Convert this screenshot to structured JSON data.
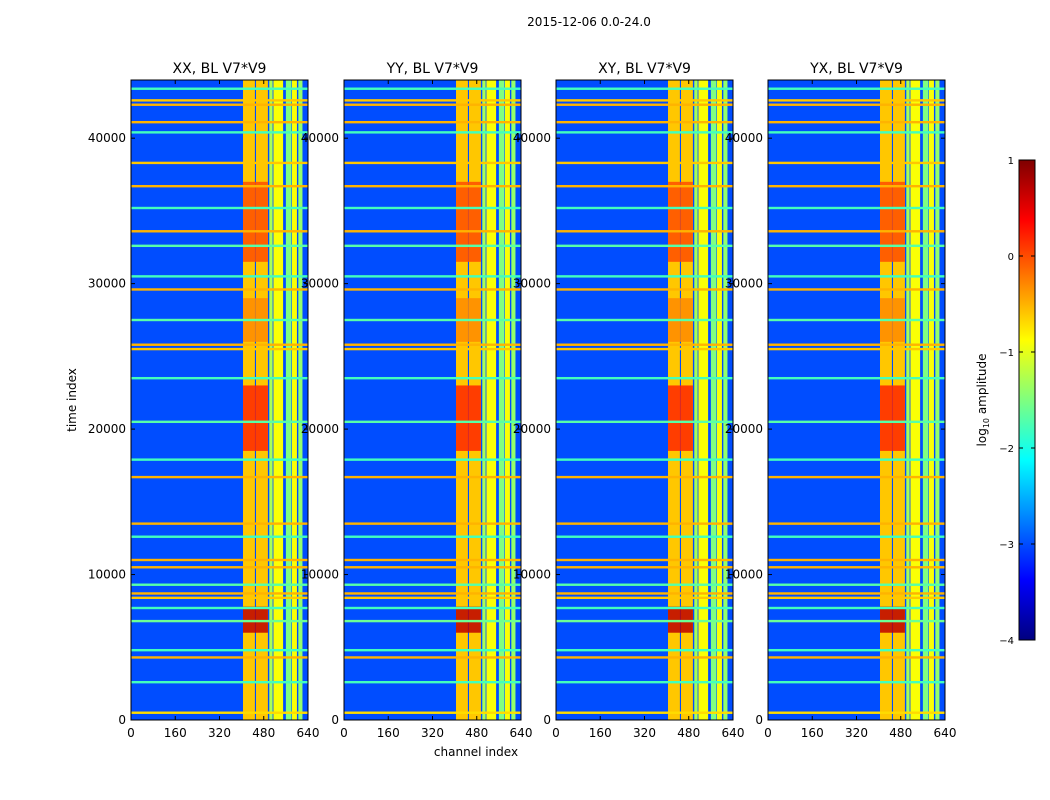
{
  "figure": {
    "suptitle": "2015-12-06 0.0-24.0",
    "xlabel": "channel index",
    "ylabel": "time index"
  },
  "colorbar": {
    "label_prefix": "log",
    "label_sub": "10",
    "label_suffix": " amplitude",
    "range": [
      -4,
      1
    ],
    "ticks": [
      1,
      0,
      -1,
      -2,
      -3,
      -4
    ],
    "tick_labels": [
      "1",
      "0",
      "−1",
      "−2",
      "−3",
      "−4"
    ],
    "colormap": "jet",
    "stops": [
      "#00007f",
      "#0000ff",
      "#007fff",
      "#00ffff",
      "#7fff7f",
      "#ffff00",
      "#ff7f00",
      "#ff0000",
      "#7f0000"
    ]
  },
  "chart_data": {
    "type": "heatmap",
    "xlim": [
      0,
      640
    ],
    "ylim": [
      0,
      44000
    ],
    "xticks": [
      0,
      160,
      320,
      480,
      640
    ],
    "yticks": [
      0,
      10000,
      20000,
      30000,
      40000
    ],
    "ytick_labels": [
      "0",
      "10000",
      "20000",
      "30000",
      "40000"
    ],
    "panels": [
      {
        "title": "XX, BL V7*V9"
      },
      {
        "title": "YY, BL V7*V9"
      },
      {
        "title": "XY, BL V7*V9"
      },
      {
        "title": "YX, BL V7*V9"
      }
    ],
    "background_level": -3,
    "channel_bands": [
      {
        "x": [
          405,
          448
        ],
        "level": -0.6
      },
      {
        "x": [
          452,
          495
        ],
        "level": -0.6
      },
      {
        "x": [
          500,
          512
        ],
        "level": -1.3
      },
      {
        "x": [
          515,
          550
        ],
        "level": -0.9
      },
      {
        "x": [
          560,
          580
        ],
        "level": -1.5
      },
      {
        "x": [
          582,
          600
        ],
        "level": -0.9
      },
      {
        "x": [
          605,
          620
        ],
        "level": -1.4
      }
    ],
    "hot_regions": [
      {
        "x": [
          405,
          495
        ],
        "t": [
          6000,
          7800
        ],
        "level": 0.7
      },
      {
        "x": [
          405,
          495
        ],
        "t": [
          18500,
          23000
        ],
        "level": 0.2
      },
      {
        "x": [
          405,
          495
        ],
        "t": [
          31500,
          37000
        ],
        "level": 0.0
      },
      {
        "x": [
          405,
          495
        ],
        "t": [
          26000,
          29000
        ],
        "level": -0.3
      }
    ],
    "flagged_time_lines": [
      {
        "t": 500,
        "level": -0.7
      },
      {
        "t": 2600,
        "level": -1.8
      },
      {
        "t": 4300,
        "level": -0.5
      },
      {
        "t": 4800,
        "level": -1.8
      },
      {
        "t": 6800,
        "level": -1.6
      },
      {
        "t": 7700,
        "level": -1.8
      },
      {
        "t": 8400,
        "level": -0.6
      },
      {
        "t": 8700,
        "level": -0.5
      },
      {
        "t": 9300,
        "level": -1.7
      },
      {
        "t": 10500,
        "level": -0.5
      },
      {
        "t": 11000,
        "level": -0.5
      },
      {
        "t": 12600,
        "level": -1.8
      },
      {
        "t": 13500,
        "level": -0.5
      },
      {
        "t": 16700,
        "level": -0.5
      },
      {
        "t": 17900,
        "level": -1.8
      },
      {
        "t": 20500,
        "level": -1.7
      },
      {
        "t": 23500,
        "level": -1.8
      },
      {
        "t": 25500,
        "level": -0.6
      },
      {
        "t": 25800,
        "level": -0.5
      },
      {
        "t": 27500,
        "level": -1.7
      },
      {
        "t": 29600,
        "level": -0.5
      },
      {
        "t": 30500,
        "level": -1.8
      },
      {
        "t": 32600,
        "level": -1.7
      },
      {
        "t": 33600,
        "level": -0.5
      },
      {
        "t": 35200,
        "level": -1.8
      },
      {
        "t": 36700,
        "level": -0.5
      },
      {
        "t": 38300,
        "level": -0.6
      },
      {
        "t": 40400,
        "level": -1.8
      },
      {
        "t": 41100,
        "level": -0.5
      },
      {
        "t": 42300,
        "level": -0.5
      },
      {
        "t": 42600,
        "level": -0.6
      },
      {
        "t": 43400,
        "level": -1.8
      }
    ]
  }
}
